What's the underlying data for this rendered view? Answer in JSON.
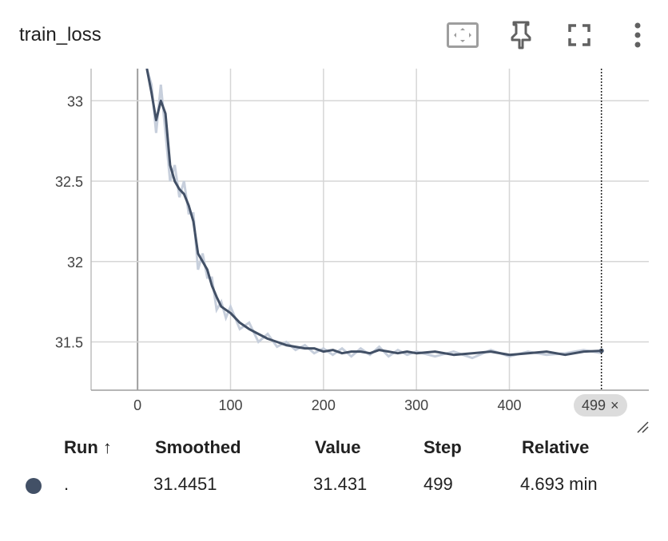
{
  "header": {
    "title": "train_loss",
    "icons": [
      "fit-domain-icon",
      "pin-icon",
      "fullscreen-icon",
      "more-vert-icon"
    ]
  },
  "chart_data": {
    "type": "line",
    "title": "train_loss",
    "xlabel": "",
    "ylabel": "",
    "xlim": [
      -50,
      550
    ],
    "ylim": [
      31.2,
      33.2
    ],
    "x_ticks": [
      0,
      100,
      200,
      300,
      400
    ],
    "x_tick_labels": [
      "0",
      "100",
      "200",
      "300",
      "400"
    ],
    "y_ticks": [
      31.5,
      32,
      32.5,
      33
    ],
    "y_tick_labels": [
      "31.5",
      "32",
      "32.5",
      "33"
    ],
    "grid": true,
    "hover_step": 499,
    "hover_step_label": "499",
    "series": [
      {
        "name": ".",
        "color": "#425066",
        "raw_color": "#c7cfdc",
        "smoothed": {
          "x": [
            10,
            15,
            20,
            25,
            30,
            35,
            40,
            45,
            50,
            55,
            60,
            65,
            70,
            75,
            80,
            85,
            90,
            95,
            100,
            110,
            120,
            130,
            140,
            150,
            160,
            170,
            180,
            190,
            200,
            210,
            220,
            230,
            240,
            250,
            260,
            270,
            280,
            290,
            300,
            320,
            340,
            360,
            380,
            400,
            420,
            440,
            460,
            480,
            499
          ],
          "y": [
            33.2,
            33.05,
            32.88,
            33.0,
            32.92,
            32.6,
            32.5,
            32.45,
            32.42,
            32.35,
            32.25,
            32.05,
            32.0,
            31.95,
            31.85,
            31.78,
            31.72,
            31.7,
            31.68,
            31.62,
            31.58,
            31.55,
            31.52,
            31.5,
            31.48,
            31.47,
            31.46,
            31.46,
            31.44,
            31.45,
            31.43,
            31.44,
            31.44,
            31.43,
            31.45,
            31.44,
            31.43,
            31.44,
            31.43,
            31.44,
            31.42,
            31.43,
            31.44,
            31.42,
            31.43,
            31.44,
            31.42,
            31.44,
            31.445
          ]
        },
        "raw": {
          "x": [
            10,
            15,
            20,
            25,
            30,
            35,
            40,
            45,
            50,
            55,
            60,
            65,
            70,
            75,
            80,
            85,
            90,
            95,
            100,
            110,
            120,
            130,
            140,
            150,
            160,
            170,
            180,
            190,
            200,
            210,
            220,
            230,
            240,
            250,
            260,
            270,
            280,
            290,
            300,
            320,
            340,
            360,
            380,
            400,
            420,
            440,
            460,
            480,
            499
          ],
          "y": [
            33.2,
            33.1,
            32.8,
            33.1,
            32.8,
            32.5,
            32.6,
            32.4,
            32.5,
            32.3,
            32.3,
            31.95,
            32.05,
            31.9,
            31.9,
            31.7,
            31.75,
            31.65,
            31.72,
            31.58,
            31.62,
            31.5,
            31.55,
            31.47,
            31.5,
            31.45,
            31.48,
            31.43,
            31.46,
            31.42,
            31.46,
            31.41,
            31.46,
            31.42,
            31.47,
            31.41,
            31.45,
            31.42,
            31.44,
            31.41,
            31.44,
            31.4,
            31.45,
            31.41,
            31.44,
            31.42,
            31.43,
            31.45,
            31.431
          ]
        }
      }
    ]
  },
  "step_chip": {
    "label": "499",
    "close": "×"
  },
  "table": {
    "headers": {
      "run": "Run ↑",
      "smoothed": "Smoothed",
      "value": "Value",
      "step": "Step",
      "relative": "Relative"
    },
    "rows": [
      {
        "color": "#425066",
        "run": ".",
        "smoothed": "31.4451",
        "value": "31.431",
        "step": "499",
        "relative": "4.693 min"
      }
    ]
  }
}
